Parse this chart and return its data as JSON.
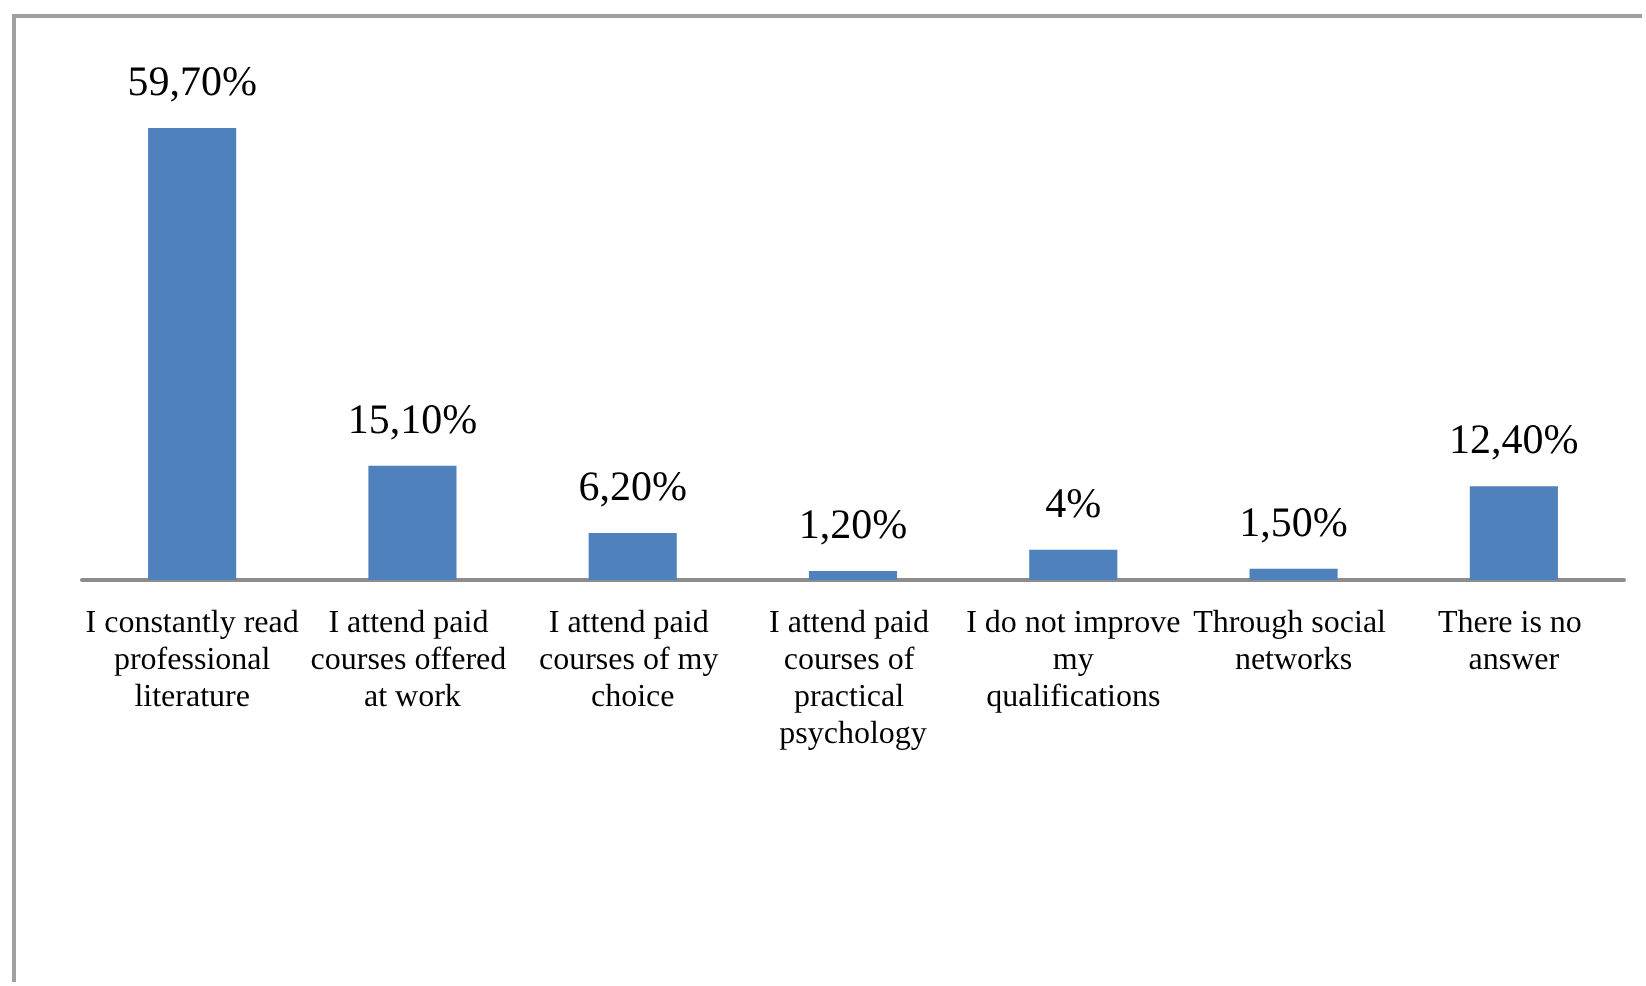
{
  "chart_data": {
    "type": "bar",
    "categories": [
      "I constantly read professional literature",
      "I attend paid courses offered at work",
      "I attend paid courses of my choice",
      "I attend paid courses of practical psychology",
      "I do not improve my qualifications",
      "Through social networks",
      "There is no answer"
    ],
    "values": [
      59.7,
      15.1,
      6.2,
      1.2,
      4,
      1.5,
      12.4
    ],
    "value_labels": [
      "59,70%",
      "15,10%",
      "6,20%",
      "1,20%",
      "4%",
      "1,50%",
      "12,40%"
    ],
    "color": "#4f81bd"
  }
}
